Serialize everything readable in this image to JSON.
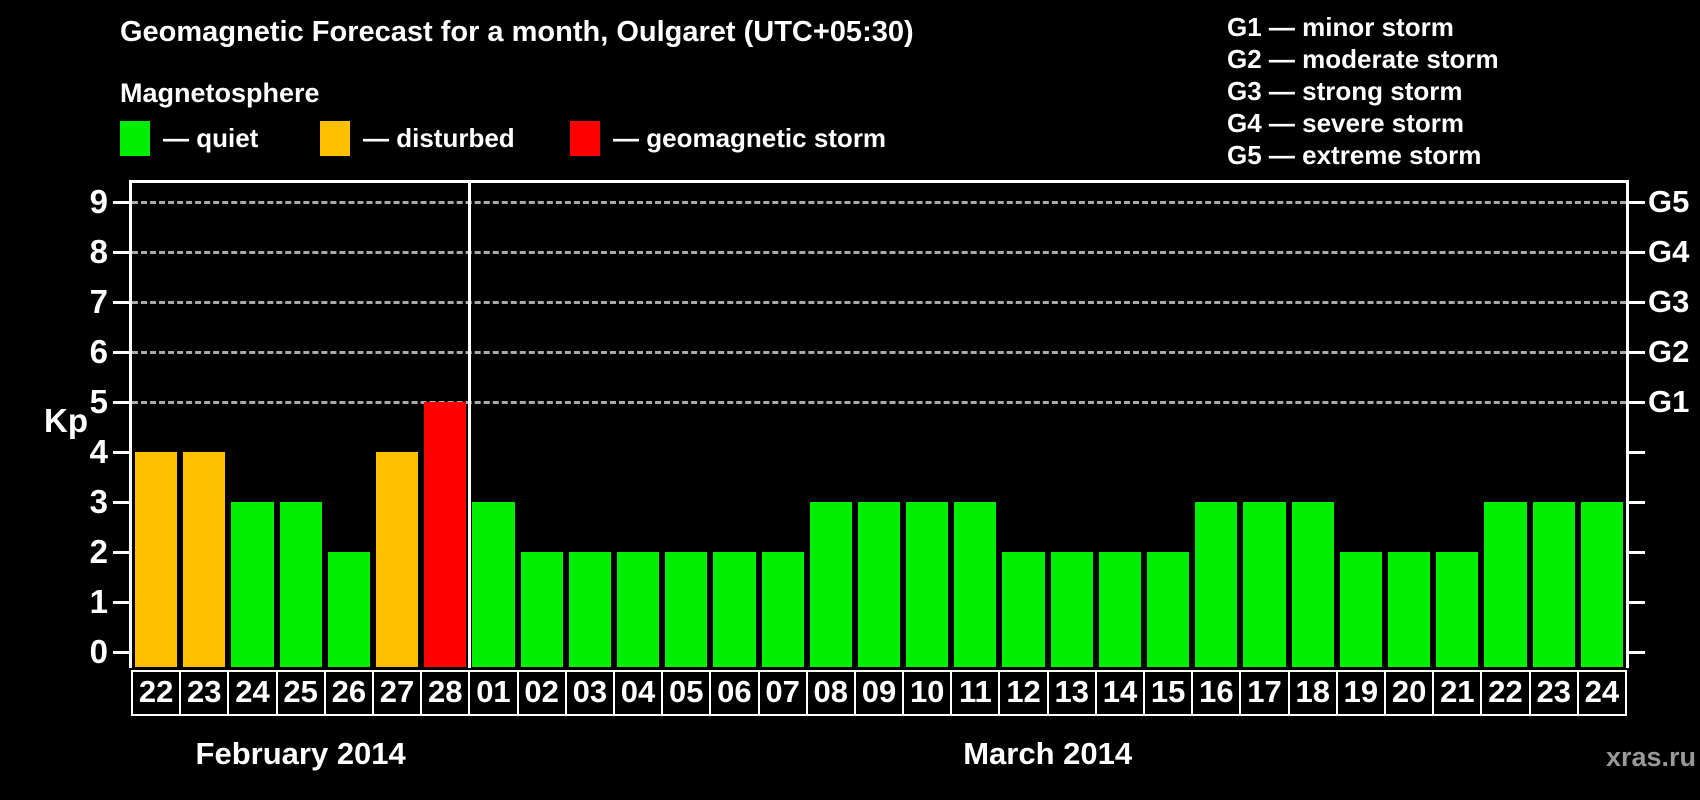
{
  "title": "Geomagnetic Forecast for a month, Oulgaret (UTC+05:30)",
  "legend": {
    "heading": "Magnetosphere",
    "items": [
      {
        "key": "quiet",
        "label": "— quiet"
      },
      {
        "key": "disturbed",
        "label": "— disturbed"
      },
      {
        "key": "storm",
        "label": "— geomagnetic storm"
      }
    ]
  },
  "g_legend": {
    "items": [
      "G1 — minor storm",
      "G2 — moderate storm",
      "G3 — strong storm",
      "G4 — severe storm",
      "G5 — extreme storm"
    ]
  },
  "watermark": "xras.ru",
  "chart_data": {
    "type": "bar",
    "title": "Geomagnetic Forecast for a month, Oulgaret (UTC+05:30)",
    "ylabel": "Kp",
    "ylim": [
      0,
      9
    ],
    "y_ticks": [
      0,
      1,
      2,
      3,
      4,
      5,
      6,
      7,
      8,
      9
    ],
    "gridlines_at": [
      5,
      6,
      7,
      8,
      9
    ],
    "grid_style": "dashed",
    "legend_position": "top",
    "right_axis_labels": [
      {
        "kp": 5,
        "label": "G1"
      },
      {
        "kp": 6,
        "label": "G2"
      },
      {
        "kp": 7,
        "label": "G3"
      },
      {
        "kp": 8,
        "label": "G4"
      },
      {
        "kp": 9,
        "label": "G5"
      }
    ],
    "status_colors": {
      "quiet": "#00EE00",
      "disturbed": "#FFC000",
      "storm": "#FF0000"
    },
    "axis_color": "#FFFFFF",
    "gridline_color": "#A9A9A9",
    "months": [
      {
        "label": "February 2014",
        "days": [
          {
            "day": "22",
            "kp": 4,
            "status": "disturbed"
          },
          {
            "day": "23",
            "kp": 4,
            "status": "disturbed"
          },
          {
            "day": "24",
            "kp": 3,
            "status": "quiet"
          },
          {
            "day": "25",
            "kp": 3,
            "status": "quiet"
          },
          {
            "day": "26",
            "kp": 2,
            "status": "quiet"
          },
          {
            "day": "27",
            "kp": 4,
            "status": "disturbed"
          },
          {
            "day": "28",
            "kp": 5,
            "status": "storm"
          }
        ]
      },
      {
        "label": "March 2014",
        "days": [
          {
            "day": "01",
            "kp": 3,
            "status": "quiet"
          },
          {
            "day": "02",
            "kp": 2,
            "status": "quiet"
          },
          {
            "day": "03",
            "kp": 2,
            "status": "quiet"
          },
          {
            "day": "04",
            "kp": 2,
            "status": "quiet"
          },
          {
            "day": "05",
            "kp": 2,
            "status": "quiet"
          },
          {
            "day": "06",
            "kp": 2,
            "status": "quiet"
          },
          {
            "day": "07",
            "kp": 2,
            "status": "quiet"
          },
          {
            "day": "08",
            "kp": 3,
            "status": "quiet"
          },
          {
            "day": "09",
            "kp": 3,
            "status": "quiet"
          },
          {
            "day": "10",
            "kp": 3,
            "status": "quiet"
          },
          {
            "day": "11",
            "kp": 3,
            "status": "quiet"
          },
          {
            "day": "12",
            "kp": 2,
            "status": "quiet"
          },
          {
            "day": "13",
            "kp": 2,
            "status": "quiet"
          },
          {
            "day": "14",
            "kp": 2,
            "status": "quiet"
          },
          {
            "day": "15",
            "kp": 2,
            "status": "quiet"
          },
          {
            "day": "16",
            "kp": 3,
            "status": "quiet"
          },
          {
            "day": "17",
            "kp": 3,
            "status": "quiet"
          },
          {
            "day": "18",
            "kp": 3,
            "status": "quiet"
          },
          {
            "day": "19",
            "kp": 2,
            "status": "quiet"
          },
          {
            "day": "20",
            "kp": 2,
            "status": "quiet"
          },
          {
            "day": "21",
            "kp": 2,
            "status": "quiet"
          },
          {
            "day": "22",
            "kp": 3,
            "status": "quiet"
          },
          {
            "day": "23",
            "kp": 3,
            "status": "quiet"
          },
          {
            "day": "24",
            "kp": 3,
            "status": "quiet"
          }
        ]
      }
    ]
  }
}
